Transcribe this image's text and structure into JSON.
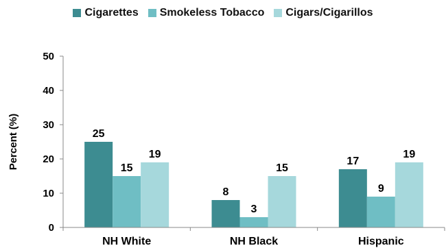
{
  "chart_data": {
    "type": "bar",
    "title": "",
    "xlabel": "",
    "ylabel": "Percent (%)",
    "ylim": [
      0,
      50
    ],
    "yticks": [
      0,
      10,
      20,
      30,
      40,
      50
    ],
    "grid": false,
    "legend_position": "top-center",
    "categories": [
      "NH White",
      "NH Black",
      "Hispanic"
    ],
    "series": [
      {
        "name": "Cigarettes",
        "color": "#3D8C91",
        "values": [
          25,
          8,
          17
        ]
      },
      {
        "name": "Smokeless Tobacco",
        "color": "#6FBEC4",
        "values": [
          15,
          3,
          9
        ]
      },
      {
        "name": "Cigars/Cigarillos",
        "color": "#A6D8DC",
        "values": [
          19,
          15,
          19
        ]
      }
    ]
  }
}
